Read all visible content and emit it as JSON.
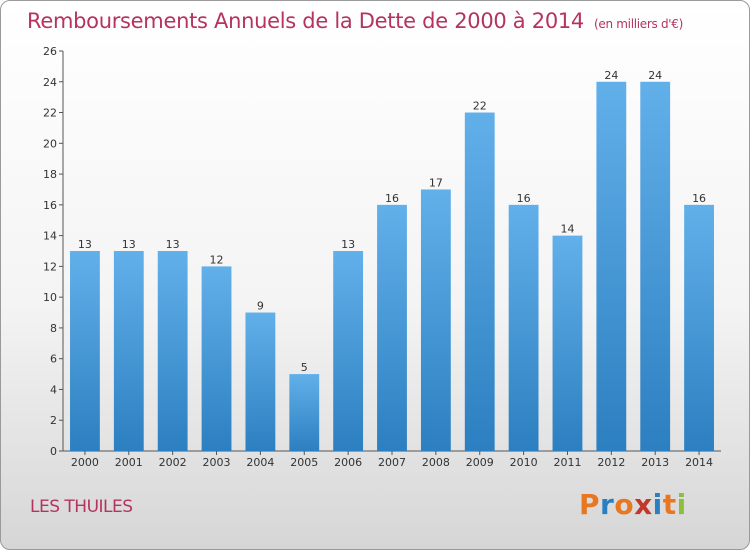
{
  "title": "Remboursements Annuels de la Dette de 2000 à 2014",
  "subtitle": "(en milliers d'€)",
  "commune": "LES THUILES",
  "logo_text": "Proxiti",
  "colors": {
    "title": "#b5335e",
    "bar_light": "#62b0ea",
    "bar_dark": "#2c7fc0",
    "logo_letters": [
      "#e87722",
      "#2a7fc1",
      "#e87722",
      "#c0392b",
      "#2a7fc1",
      "#e87722",
      "#8cbf3f"
    ]
  },
  "chart_data": {
    "type": "bar",
    "title": "Remboursements Annuels de la Dette de 2000 à 2014",
    "xlabel": "",
    "ylabel": "",
    "categories": [
      "2000",
      "2001",
      "2002",
      "2003",
      "2004",
      "2005",
      "2006",
      "2007",
      "2008",
      "2009",
      "2010",
      "2011",
      "2012",
      "2013",
      "2014"
    ],
    "values": [
      13,
      13,
      13,
      12,
      9,
      5,
      13,
      16,
      17,
      22,
      16,
      14,
      24,
      24,
      16
    ],
    "ylim": [
      0,
      26
    ],
    "yticks": [
      0,
      2,
      4,
      6,
      8,
      10,
      12,
      14,
      16,
      18,
      20,
      22,
      24,
      26
    ],
    "grid": false,
    "data_labels": true
  }
}
